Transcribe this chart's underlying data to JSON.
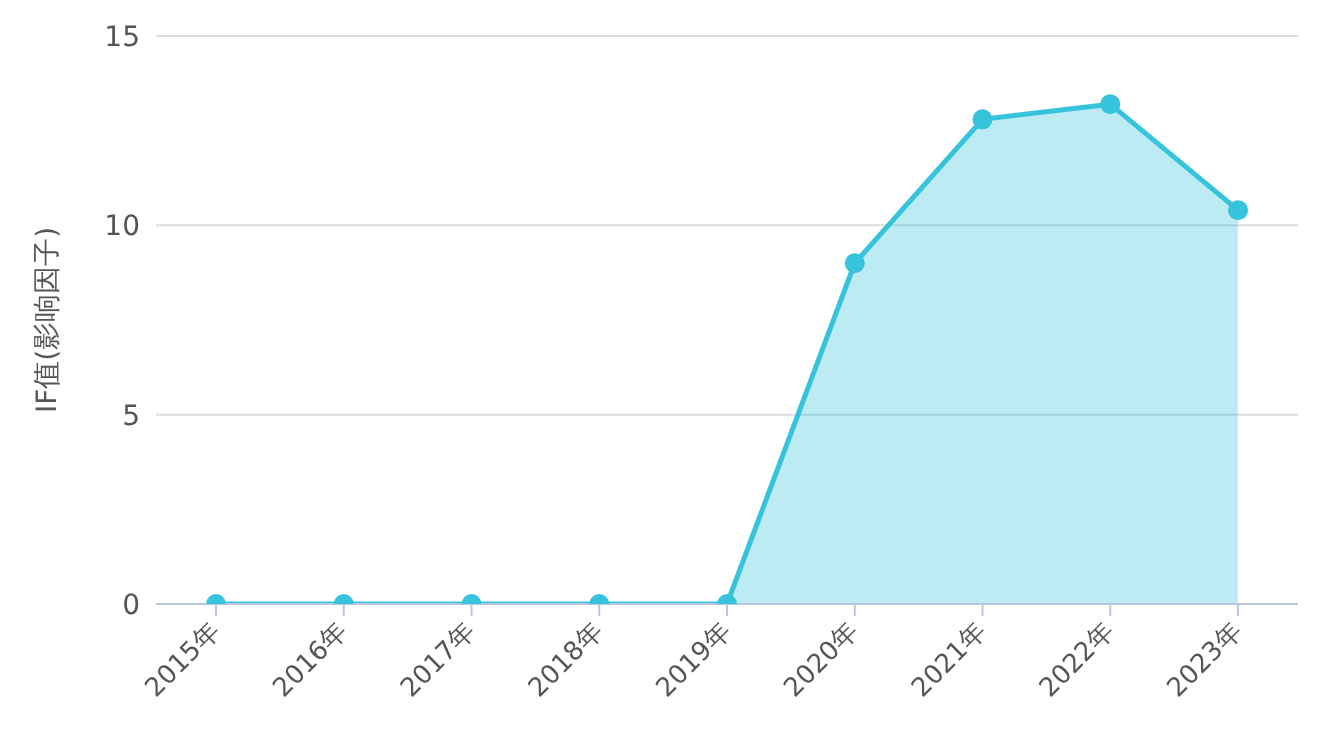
{
  "chart_data": {
    "type": "area",
    "ylabel": "IF值(影响因子)",
    "categories": [
      "2015年",
      "2016年",
      "2017年",
      "2018年",
      "2019年",
      "2020年",
      "2021年",
      "2022年",
      "2023年"
    ],
    "series": [
      {
        "color": "#36c3dc",
        "values": [
          0,
          0,
          0,
          0,
          0,
          9.0,
          12.8,
          13.2,
          10.4
        ]
      }
    ],
    "ylim": [
      0,
      15
    ],
    "yticks": [
      0,
      5,
      10,
      15
    ],
    "grid": "y",
    "marker": "circle"
  }
}
